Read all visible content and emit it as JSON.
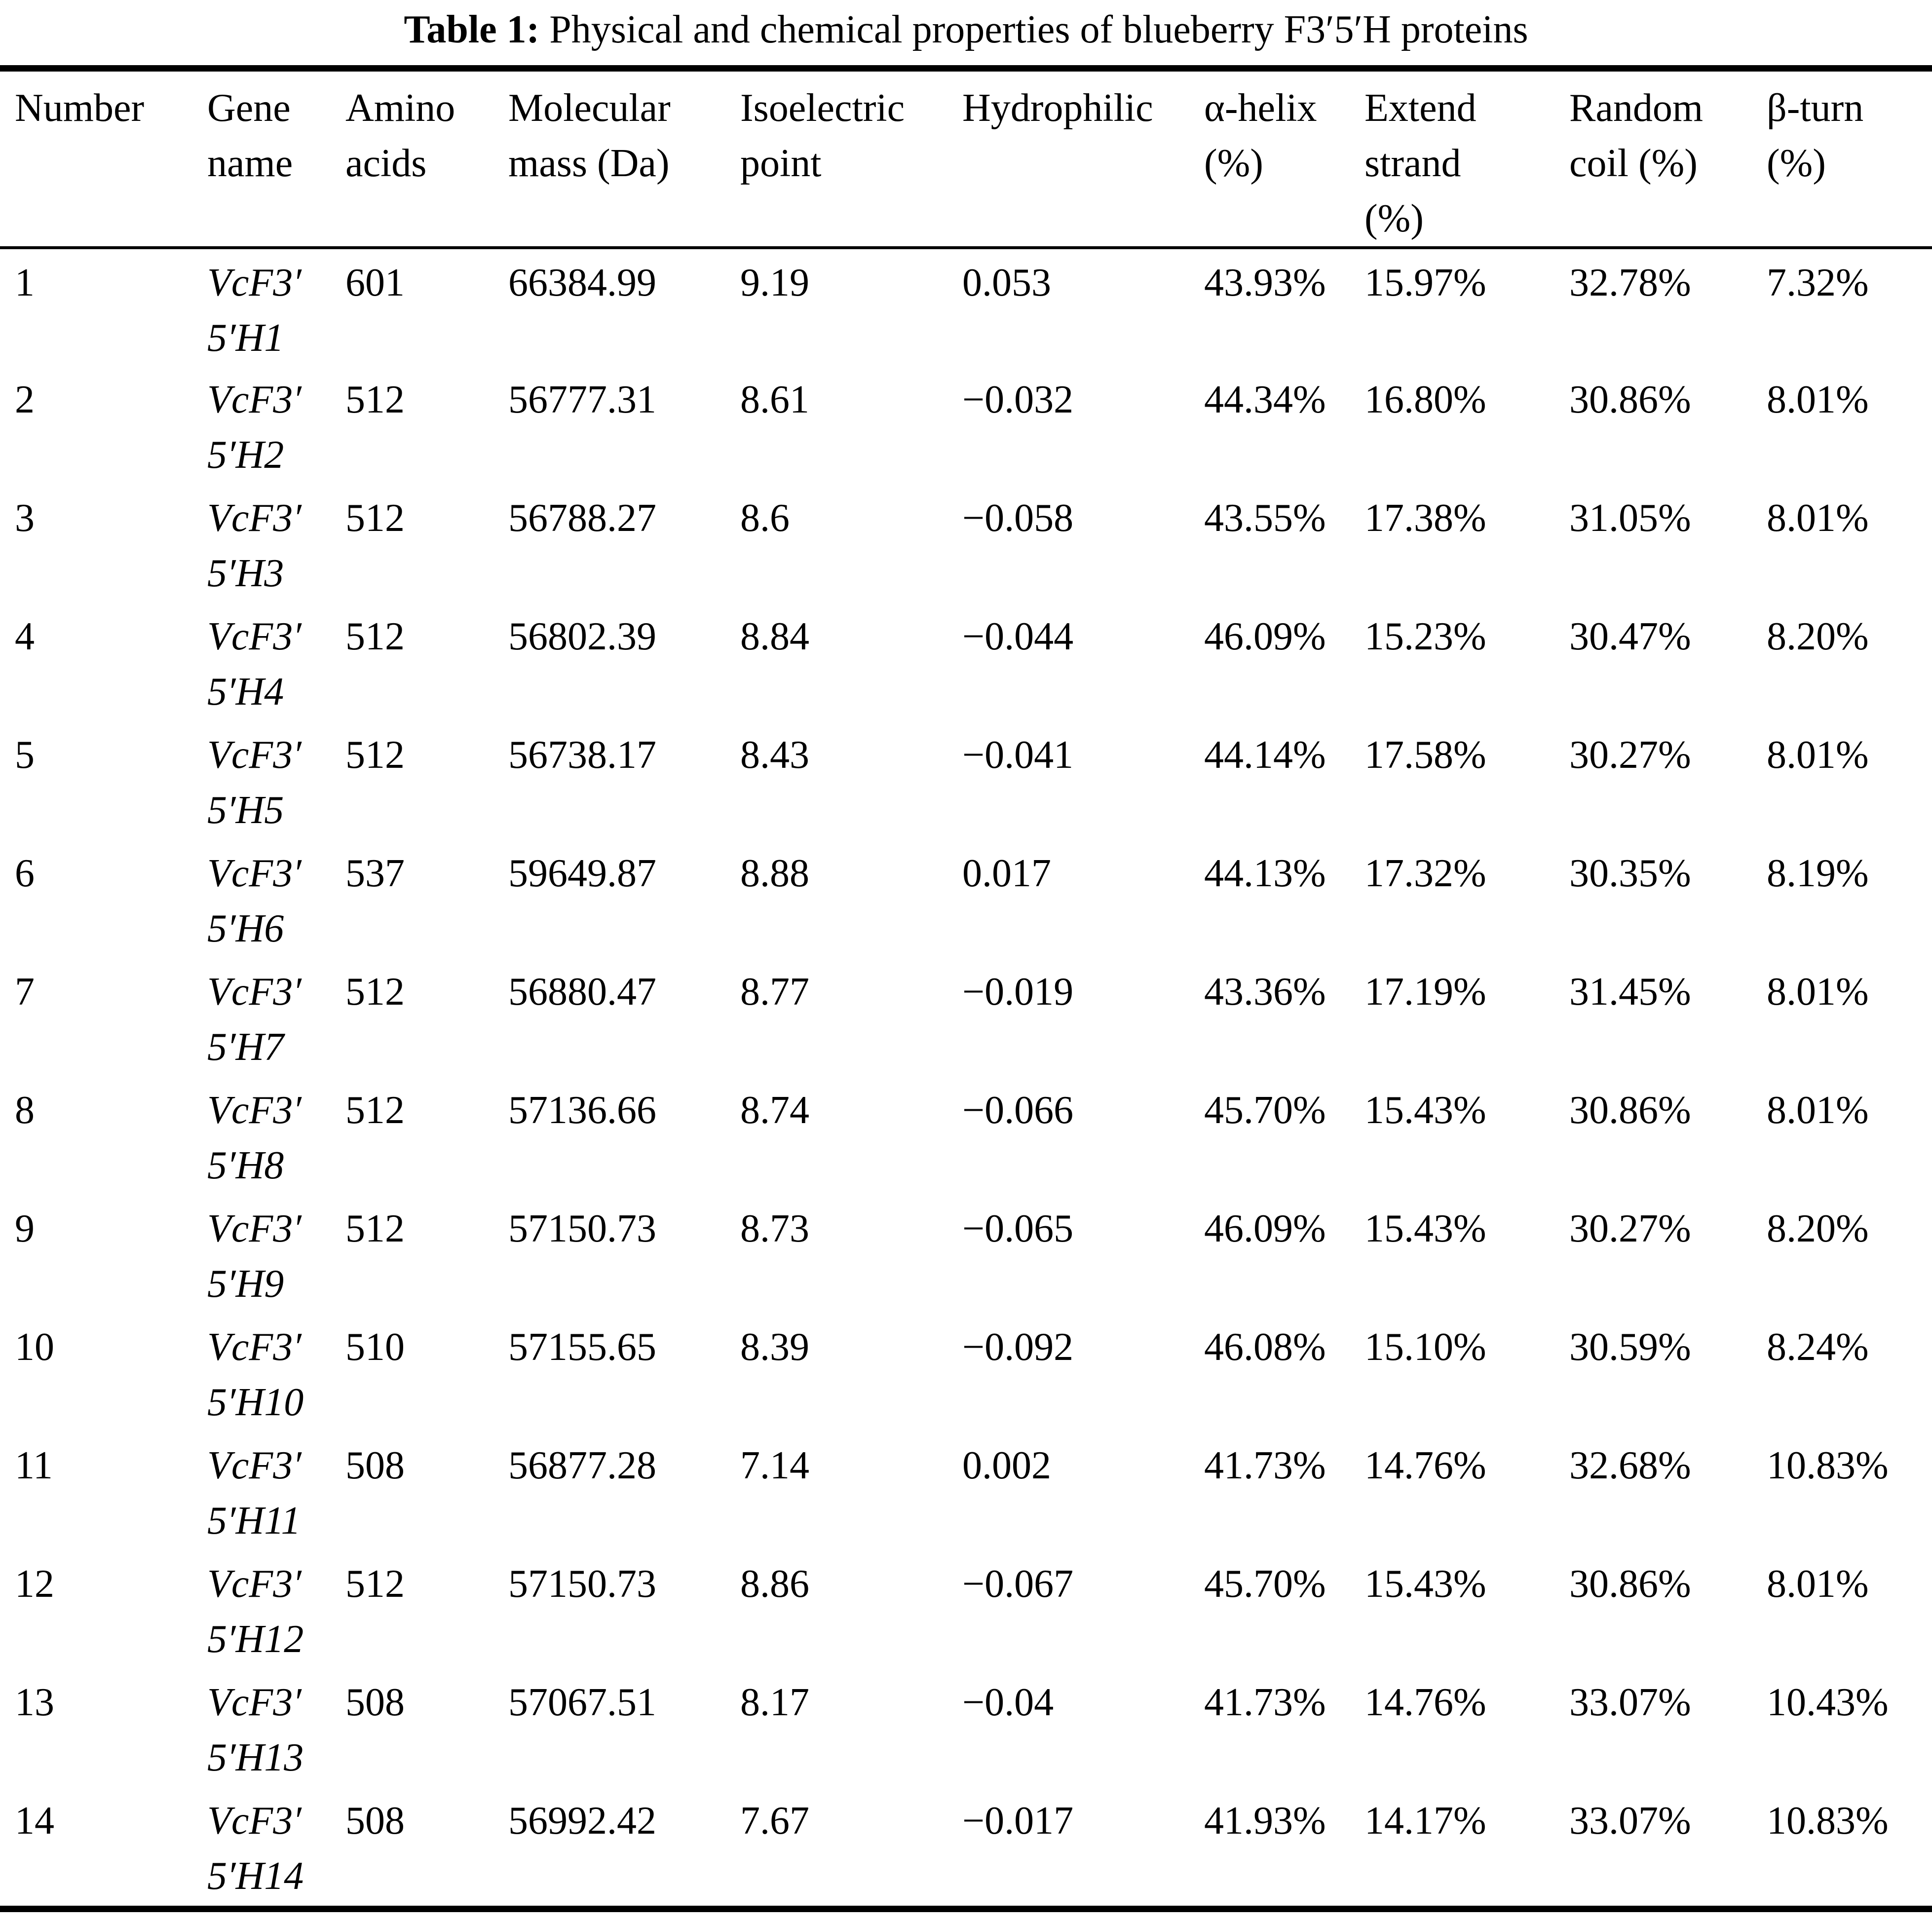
{
  "caption": {
    "label": "Table 1:",
    "text": " Physical and chemical properties of blueberry F3′5′H proteins"
  },
  "table": {
    "columns": [
      {
        "key": "number",
        "label": "Number"
      },
      {
        "key": "gene",
        "label": "Gene\nname"
      },
      {
        "key": "amino_acids",
        "label": "Amino\nacids"
      },
      {
        "key": "molecular_mass",
        "label": "Molecular\nmass (Da)"
      },
      {
        "key": "isoelectric_point",
        "label": "Isoelectric\npoint"
      },
      {
        "key": "hydrophilic",
        "label": "Hydrophilic"
      },
      {
        "key": "alpha_helix",
        "label": "α-helix\n(%)"
      },
      {
        "key": "extend_strand",
        "label": "Extend\nstrand\n(%)"
      },
      {
        "key": "random_coil",
        "label": "Random\ncoil (%)"
      },
      {
        "key": "beta_turn",
        "label": "β-turn\n(%)"
      }
    ],
    "rows": [
      {
        "number": "1",
        "gene": "VcF3′\n5′H1",
        "amino_acids": "601",
        "molecular_mass": "66384.99",
        "isoelectric_point": "9.19",
        "hydrophilic": "0.053",
        "alpha_helix": "43.93%",
        "extend_strand": "15.97%",
        "random_coil": "32.78%",
        "beta_turn": "7.32%"
      },
      {
        "number": "2",
        "gene": "VcF3′\n5′H2",
        "amino_acids": "512",
        "molecular_mass": "56777.31",
        "isoelectric_point": "8.61",
        "hydrophilic": "−0.032",
        "alpha_helix": "44.34%",
        "extend_strand": "16.80%",
        "random_coil": "30.86%",
        "beta_turn": "8.01%"
      },
      {
        "number": "3",
        "gene": "VcF3′\n5′H3",
        "amino_acids": "512",
        "molecular_mass": "56788.27",
        "isoelectric_point": "8.6",
        "hydrophilic": "−0.058",
        "alpha_helix": "43.55%",
        "extend_strand": "17.38%",
        "random_coil": "31.05%",
        "beta_turn": "8.01%"
      },
      {
        "number": "4",
        "gene": "VcF3′\n5′H4",
        "amino_acids": "512",
        "molecular_mass": "56802.39",
        "isoelectric_point": "8.84",
        "hydrophilic": "−0.044",
        "alpha_helix": "46.09%",
        "extend_strand": "15.23%",
        "random_coil": "30.47%",
        "beta_turn": "8.20%"
      },
      {
        "number": "5",
        "gene": "VcF3′\n5′H5",
        "amino_acids": "512",
        "molecular_mass": "56738.17",
        "isoelectric_point": "8.43",
        "hydrophilic": "−0.041",
        "alpha_helix": "44.14%",
        "extend_strand": "17.58%",
        "random_coil": "30.27%",
        "beta_turn": "8.01%"
      },
      {
        "number": "6",
        "gene": "VcF3′\n5′H6",
        "amino_acids": "537",
        "molecular_mass": "59649.87",
        "isoelectric_point": "8.88",
        "hydrophilic": "0.017",
        "alpha_helix": "44.13%",
        "extend_strand": "17.32%",
        "random_coil": "30.35%",
        "beta_turn": "8.19%"
      },
      {
        "number": "7",
        "gene": "VcF3′\n5′H7",
        "amino_acids": "512",
        "molecular_mass": "56880.47",
        "isoelectric_point": "8.77",
        "hydrophilic": "−0.019",
        "alpha_helix": "43.36%",
        "extend_strand": "17.19%",
        "random_coil": "31.45%",
        "beta_turn": "8.01%"
      },
      {
        "number": "8",
        "gene": "VcF3′\n5′H8",
        "amino_acids": "512",
        "molecular_mass": "57136.66",
        "isoelectric_point": "8.74",
        "hydrophilic": "−0.066",
        "alpha_helix": "45.70%",
        "extend_strand": "15.43%",
        "random_coil": "30.86%",
        "beta_turn": "8.01%"
      },
      {
        "number": "9",
        "gene": "VcF3′\n5′H9",
        "amino_acids": "512",
        "molecular_mass": "57150.73",
        "isoelectric_point": "8.73",
        "hydrophilic": "−0.065",
        "alpha_helix": "46.09%",
        "extend_strand": "15.43%",
        "random_coil": "30.27%",
        "beta_turn": "8.20%"
      },
      {
        "number": "10",
        "gene": "VcF3′\n5′H10",
        "amino_acids": "510",
        "molecular_mass": "57155.65",
        "isoelectric_point": "8.39",
        "hydrophilic": "−0.092",
        "alpha_helix": "46.08%",
        "extend_strand": "15.10%",
        "random_coil": "30.59%",
        "beta_turn": "8.24%"
      },
      {
        "number": "11",
        "gene": "VcF3′\n5′H11",
        "amino_acids": "508",
        "molecular_mass": "56877.28",
        "isoelectric_point": "7.14",
        "hydrophilic": "0.002",
        "alpha_helix": "41.73%",
        "extend_strand": "14.76%",
        "random_coil": "32.68%",
        "beta_turn": "10.83%"
      },
      {
        "number": "12",
        "gene": "VcF3′\n5′H12",
        "amino_acids": "512",
        "molecular_mass": "57150.73",
        "isoelectric_point": "8.86",
        "hydrophilic": "−0.067",
        "alpha_helix": "45.70%",
        "extend_strand": "15.43%",
        "random_coil": "30.86%",
        "beta_turn": "8.01%"
      },
      {
        "number": "13",
        "gene": "VcF3′\n5′H13",
        "amino_acids": "508",
        "molecular_mass": "57067.51",
        "isoelectric_point": "8.17",
        "hydrophilic": "−0.04",
        "alpha_helix": "41.73%",
        "extend_strand": "14.76%",
        "random_coil": "33.07%",
        "beta_turn": "10.43%"
      },
      {
        "number": "14",
        "gene": "VcF3′\n5′H14",
        "amino_acids": "508",
        "molecular_mass": "56992.42",
        "isoelectric_point": "7.67",
        "hydrophilic": "−0.017",
        "alpha_helix": "41.93%",
        "extend_strand": "14.17%",
        "random_coil": "33.07%",
        "beta_turn": "10.83%"
      }
    ]
  }
}
